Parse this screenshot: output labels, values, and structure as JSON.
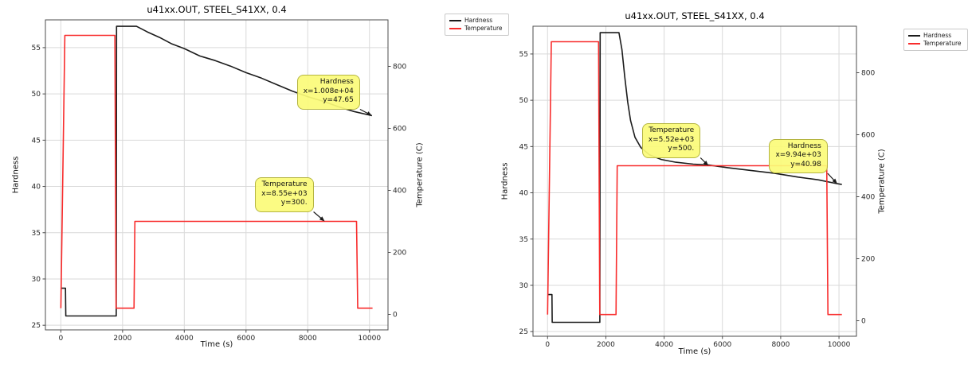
{
  "colors": {
    "grid": "#d9d9d9",
    "spine": "#4d4d4d",
    "tick_label": "#262626",
    "arrow": "#1a1a1a",
    "annotation_bg": "rgba(251,251,120,0.92)",
    "annotation_border": "#b5b542",
    "hardness_line": "#1b1b1b",
    "temperature_line": "#f82c2c"
  },
  "chart_data": [
    {
      "type": "line",
      "title": "u41xx.OUT, STEEL_S41XX, 0.4",
      "xlabel": "Time (s)",
      "ylabel_left": "Hardness",
      "ylabel_right": "Temperature (C)",
      "xlim": [
        -500,
        10600
      ],
      "ylim_left": [
        24.5,
        58
      ],
      "ylim_right": [
        -50,
        950
      ],
      "xticks": [
        0,
        2000,
        4000,
        6000,
        8000,
        10000
      ],
      "yticks_left": [
        25,
        30,
        35,
        40,
        45,
        50,
        55
      ],
      "yticks_right": [
        0,
        200,
        400,
        600,
        800
      ],
      "grid": true,
      "legend": {
        "position": "outside-upper-right",
        "entries": [
          {
            "label": "Hardness",
            "color": "#1b1b1b"
          },
          {
            "label": "Temperature",
            "color": "#f82c2c"
          }
        ]
      },
      "series": [
        {
          "name": "Hardness",
          "axis": "left",
          "color": "#1b1b1b",
          "points": [
            [
              0,
              29
            ],
            [
              150,
              29
            ],
            [
              160,
              26
            ],
            [
              1795,
              26
            ],
            [
              1805,
              57.3
            ],
            [
              2450,
              57.3
            ],
            [
              2800,
              56.7
            ],
            [
              3200,
              56.1
            ],
            [
              3600,
              55.4
            ],
            [
              4000,
              54.9
            ],
            [
              4500,
              54.1
            ],
            [
              5000,
              53.6
            ],
            [
              5500,
              53.0
            ],
            [
              6000,
              52.3
            ],
            [
              6500,
              51.7
            ],
            [
              7000,
              51.0
            ],
            [
              7500,
              50.3
            ],
            [
              8000,
              49.7
            ],
            [
              8500,
              49.2
            ],
            [
              9000,
              48.6
            ],
            [
              9500,
              48.1
            ],
            [
              10080,
              47.65
            ]
          ]
        },
        {
          "name": "Temperature",
          "axis": "right",
          "color": "#f82c2c",
          "points": [
            [
              0,
              20
            ],
            [
              130,
              900
            ],
            [
              1750,
              900
            ],
            [
              1790,
              20
            ],
            [
              2370,
              20
            ],
            [
              2400,
              300
            ],
            [
              9580,
              300
            ],
            [
              9620,
              20
            ],
            [
              10100,
              20
            ]
          ]
        }
      ],
      "annotations": [
        {
          "lines": [
            "Hardness",
            "x=1.008e+04",
            "y=47.65"
          ],
          "axis": "left",
          "target": [
            10080,
            47.65
          ],
          "offset": [
            -15,
            -8
          ]
        },
        {
          "lines": [
            "Temperature",
            "x=8.55e+03",
            "y=300."
          ],
          "axis": "right",
          "target": [
            8550,
            300
          ],
          "offset": [
            -14,
            -12
          ]
        }
      ]
    },
    {
      "type": "line",
      "title": "u41xx.OUT, STEEL_S41XX, 0.4",
      "xlabel": "Time (s)",
      "ylabel_left": "Hardness",
      "ylabel_right": "Temperature (C)",
      "xlim": [
        -500,
        10600
      ],
      "ylim_left": [
        24.5,
        58
      ],
      "ylim_right": [
        -50,
        950
      ],
      "xticks": [
        0,
        2000,
        4000,
        6000,
        8000,
        10000
      ],
      "yticks_left": [
        25,
        30,
        35,
        40,
        45,
        50,
        55
      ],
      "yticks_right": [
        0,
        200,
        400,
        600,
        800
      ],
      "grid": true,
      "legend": {
        "position": "outside-upper-right",
        "entries": [
          {
            "label": "Hardness",
            "color": "#1b1b1b"
          },
          {
            "label": "Temperature",
            "color": "#f82c2c"
          }
        ]
      },
      "series": [
        {
          "name": "Hardness",
          "axis": "left",
          "color": "#1b1b1b",
          "points": [
            [
              0,
              29
            ],
            [
              150,
              29
            ],
            [
              160,
              26
            ],
            [
              1795,
              26
            ],
            [
              1805,
              57.3
            ],
            [
              2450,
              57.3
            ],
            [
              2550,
              55.5
            ],
            [
              2650,
              52.5
            ],
            [
              2750,
              49.8
            ],
            [
              2850,
              47.8
            ],
            [
              3000,
              46.0
            ],
            [
              3200,
              44.9
            ],
            [
              3500,
              44.1
            ],
            [
              3900,
              43.6
            ],
            [
              4400,
              43.3
            ],
            [
              5000,
              43.1
            ],
            [
              5520,
              43.0
            ],
            [
              6200,
              42.7
            ],
            [
              7000,
              42.4
            ],
            [
              7800,
              42.1
            ],
            [
              8600,
              41.7
            ],
            [
              9300,
              41.4
            ],
            [
              9940,
              40.98
            ],
            [
              10100,
              40.9
            ]
          ]
        },
        {
          "name": "Temperature",
          "axis": "right",
          "color": "#f82c2c",
          "points": [
            [
              0,
              20
            ],
            [
              130,
              900
            ],
            [
              1750,
              900
            ],
            [
              1790,
              20
            ],
            [
              2350,
              20
            ],
            [
              2390,
              500
            ],
            [
              9580,
              500
            ],
            [
              9620,
              20
            ],
            [
              10100,
              20
            ]
          ]
        }
      ],
      "annotations": [
        {
          "lines": [
            "Temperature",
            "x=5.52e+03",
            "y=500."
          ],
          "axis": "right",
          "target": [
            5520,
            500
          ],
          "offset": [
            -10,
            -10
          ]
        },
        {
          "lines": [
            "Hardness",
            "x=9.94e+03",
            "y=40.98"
          ],
          "axis": "left",
          "target": [
            9940,
            40.98
          ],
          "offset": [
            -12,
            -13
          ]
        }
      ]
    }
  ]
}
